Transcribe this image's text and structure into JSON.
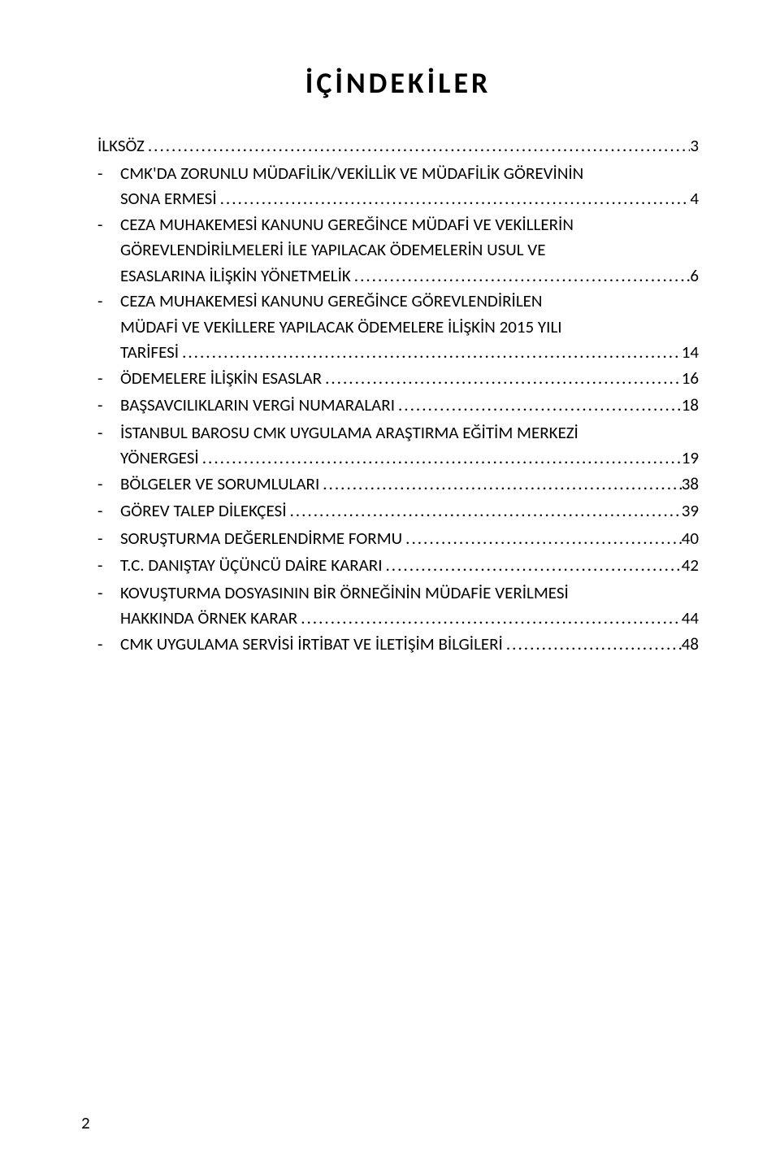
{
  "title": "İÇİNDEKİLER",
  "toc": {
    "ilksoz": {
      "label": "İLKSÖZ",
      "page": "3"
    },
    "items": [
      {
        "lines": [
          "CMK'DA ZORUNLU MÜDAFİLİK/VEKİLLİK VE  MÜDAFİLİK GÖREVİNİN"
        ],
        "last": "SONA ERMESİ",
        "page": "4"
      },
      {
        "lines": [
          "CEZA MUHAKEMESİ KANUNU GEREĞİNCE MÜDAFİ VE VEKİLLERİN",
          "GÖREVLENDİRİLMELERİ İLE YAPILACAK ÖDEMELERİN USUL VE"
        ],
        "last": "ESASLARINA İLİŞKİN YÖNETMELİK",
        "page": "6"
      },
      {
        "lines": [
          "CEZA MUHAKEMESİ KANUNU GEREĞİNCE  GÖREVLENDİRİLEN",
          "MÜDAFİ VE VEKİLLERE  YAPILACAK ÖDEMELERE İLİŞKİN  2015 YILI"
        ],
        "last": "TARİFESİ",
        "page": "14"
      },
      {
        "lines": [],
        "last": "ÖDEMELERE İLİŞKİN ESASLAR",
        "page": "16"
      },
      {
        "lines": [],
        "last": "BAŞSAVCILIKLARIN VERGİ NUMARALARI",
        "page": "18"
      },
      {
        "lines": [
          "İSTANBUL BAROSU  CMK UYGULAMA ARAŞTIRMA EĞİTİM MERKEZİ"
        ],
        "last": "YÖNERGESİ",
        "page": "19"
      },
      {
        "lines": [],
        "last": "BÖLGELER VE SORUMLULARI",
        "page": "38"
      },
      {
        "lines": [],
        "last": "GÖREV TALEP DİLEKÇESİ",
        "page": "39"
      },
      {
        "lines": [],
        "last": "SORUŞTURMA DEĞERLENDİRME FORMU",
        "page": "40"
      },
      {
        "lines": [],
        "last": "T.C. DANIŞTAY  ÜÇÜNCÜ DAİRE KARARI",
        "page": "42"
      },
      {
        "lines": [
          "KOVUŞTURMA DOSYASININ BİR ÖRNEĞİNİN MÜDAFİE VERİLMESİ"
        ],
        "last": "HAKKINDA  ÖRNEK KARAR",
        "page": "44"
      },
      {
        "lines": [],
        "last": "CMK UYGULAMA SERVİSİ  İRTİBAT VE İLETİŞİM BİLGİLERİ",
        "page": "48"
      }
    ]
  },
  "dash": "-",
  "dotFill": "........................................................................................................................................................",
  "pageNumber": "2"
}
